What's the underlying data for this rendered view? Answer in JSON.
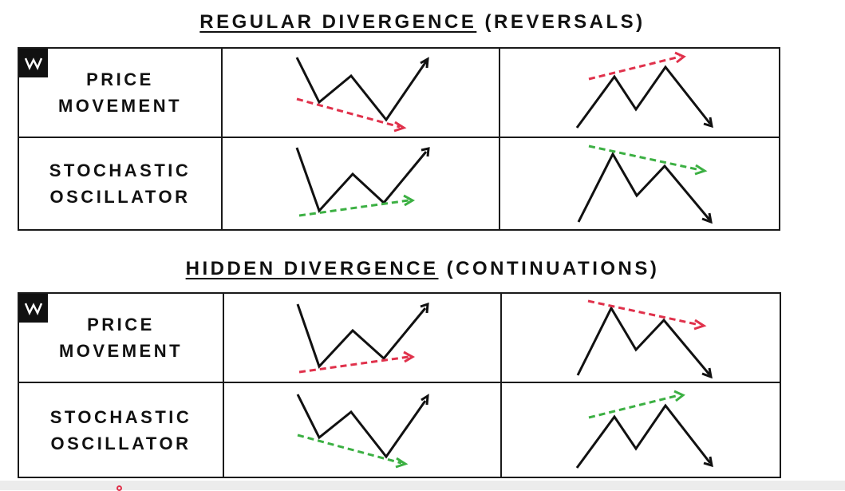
{
  "sections": [
    {
      "title_main": "REGULAR DIVERGENCE",
      "title_sub": " (REVERSALS)",
      "rows": [
        {
          "line1": "PRICE",
          "line2": "MOVEMENT"
        },
        {
          "line1": "STOCHASTIC",
          "line2": "OSCILLATOR"
        }
      ]
    },
    {
      "title_main": "HIDDEN DIVERGENCE",
      "title_sub": " (CONTINUATIONS)",
      "rows": [
        {
          "line1": "PRICE",
          "line2": "MOVEMENT"
        },
        {
          "line1": "STOCHASTIC",
          "line2": "OSCILLATOR"
        }
      ]
    }
  ],
  "colors": {
    "red_arrow": "#e0314b",
    "green_arrow": "#3cb043",
    "line": "#111111",
    "logo_bg": "#111111"
  },
  "icons": {
    "logo": "w-logo-icon"
  }
}
